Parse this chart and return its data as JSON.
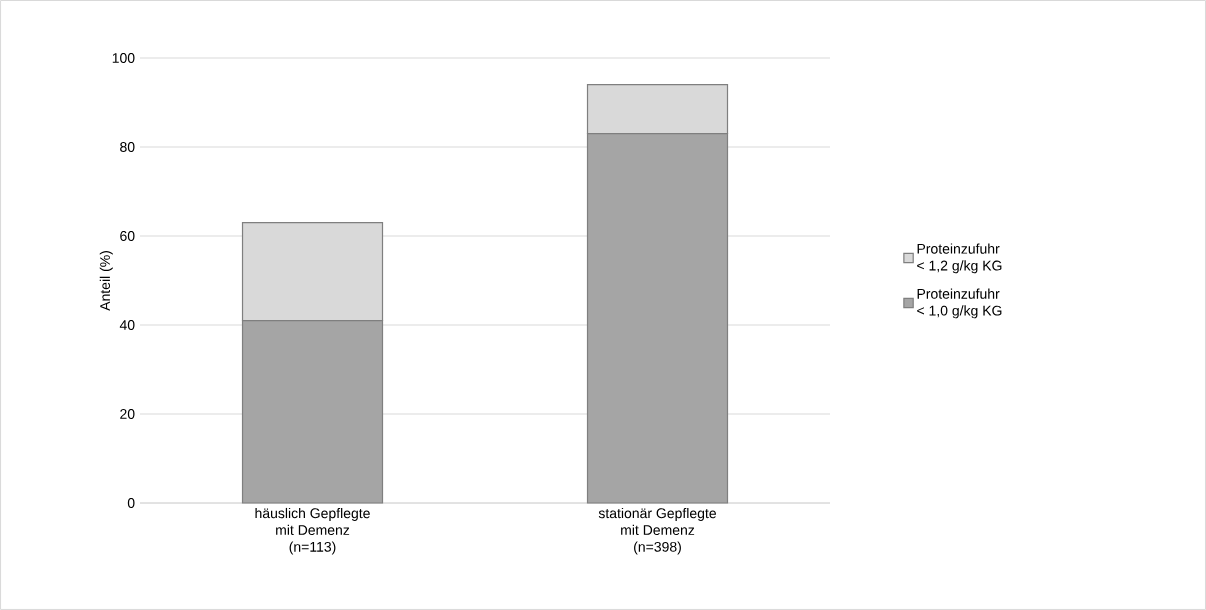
{
  "chart_data": {
    "type": "bar",
    "stacked": true,
    "ylabel": "Anteil (%)",
    "categories": [
      "häuslich Gepflegte\nmit Demenz\n(n=113)",
      "stationär Gepflegte\nmit Demenz\n(n=398)"
    ],
    "series": [
      {
        "name": "Proteinzufuhr\n< 1,0 g/kg KG",
        "color": "#a5a5a5",
        "values": [
          41,
          83
        ]
      },
      {
        "name": "Proteinzufuhr\n< 1,2 g/kg KG",
        "color": "#d9d9d9",
        "values": [
          22,
          11
        ]
      }
    ],
    "ylim": [
      0,
      100
    ],
    "yticks": [
      0,
      20,
      40,
      60,
      80,
      100
    ],
    "grid": "y",
    "legend": "right"
  }
}
